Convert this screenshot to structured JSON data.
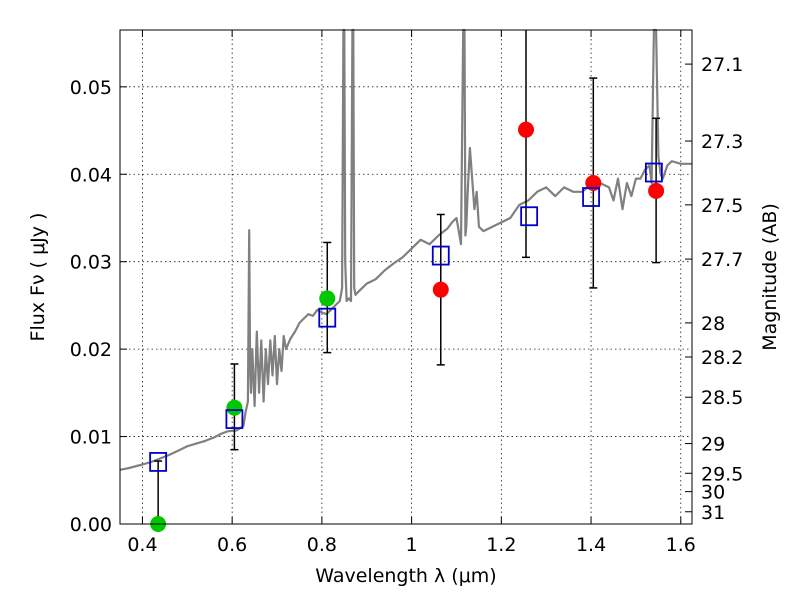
{
  "chart_data": {
    "type": "scatter",
    "title": "",
    "xlabel": "Wavelength  λ (μm)",
    "ylabel": "Flux  Fν  ( μJy )",
    "ylabel_right": "Magnitude (AB)",
    "xlim": [
      0.35,
      1.625
    ],
    "ylim": [
      0,
      0.0565
    ],
    "grid": true,
    "x_ticks": [
      0.4,
      0.6,
      0.8,
      1.0,
      1.2,
      1.4,
      1.6
    ],
    "x_tick_labels": [
      "0.4",
      "0.6",
      "0.8",
      "1",
      "1.2",
      "1.4",
      "1.6"
    ],
    "y_ticks": [
      0,
      0.01,
      0.02,
      0.03,
      0.04,
      0.05
    ],
    "y_tick_labels": [
      "0.00",
      "0.01",
      "0.02",
      "0.03",
      "0.04",
      "0.05"
    ],
    "right_ticks": [
      {
        "flux": 0.0526,
        "label": "27.1"
      },
      {
        "flux": 0.0438,
        "label": "27.3"
      },
      {
        "flux": 0.0365,
        "label": "27.5"
      },
      {
        "flux": 0.0303,
        "label": "27.7"
      },
      {
        "flux": 0.023,
        "label": "28"
      },
      {
        "flux": 0.0191,
        "label": "28.2"
      },
      {
        "flux": 0.0145,
        "label": "28.5"
      },
      {
        "flux": 0.0092,
        "label": "29"
      },
      {
        "flux": 0.0058,
        "label": "29.5"
      },
      {
        "flux": 0.0037,
        "label": "30"
      },
      {
        "flux": 0.0014,
        "label": "31"
      }
    ],
    "model_spectrum": {
      "color": "#808080",
      "x": [
        0.35,
        0.37,
        0.4,
        0.42,
        0.44,
        0.46,
        0.48,
        0.5,
        0.52,
        0.54,
        0.56,
        0.575,
        0.59,
        0.61,
        0.625,
        0.63,
        0.635,
        0.638,
        0.64,
        0.642,
        0.645,
        0.65,
        0.655,
        0.66,
        0.665,
        0.67,
        0.675,
        0.68,
        0.685,
        0.69,
        0.695,
        0.7,
        0.705,
        0.71,
        0.715,
        0.72,
        0.73,
        0.74,
        0.75,
        0.76,
        0.77,
        0.78,
        0.79,
        0.8,
        0.81,
        0.82,
        0.83,
        0.84,
        0.845,
        0.848,
        0.85,
        0.852,
        0.855,
        0.86,
        0.865,
        0.868,
        0.87,
        0.872,
        0.875,
        0.88,
        0.9,
        0.92,
        0.94,
        0.96,
        0.98,
        1.0,
        1.02,
        1.04,
        1.06,
        1.08,
        1.09,
        1.1,
        1.11,
        1.115,
        1.118,
        1.12,
        1.122,
        1.125,
        1.13,
        1.14,
        1.145,
        1.15,
        1.16,
        1.18,
        1.2,
        1.22,
        1.24,
        1.26,
        1.28,
        1.3,
        1.32,
        1.34,
        1.36,
        1.38,
        1.4,
        1.42,
        1.44,
        1.45,
        1.46,
        1.47,
        1.48,
        1.49,
        1.5,
        1.51,
        1.52,
        1.53,
        1.535,
        1.54,
        1.545,
        1.55,
        1.555,
        1.56,
        1.57,
        1.58,
        1.6,
        1.625
      ],
      "y": [
        0.0062,
        0.0064,
        0.0068,
        0.0071,
        0.0075,
        0.0079,
        0.0084,
        0.0089,
        0.0092,
        0.0095,
        0.0099,
        0.0103,
        0.0106,
        0.0107,
        0.0112,
        0.0128,
        0.014,
        0.0336,
        0.018,
        0.015,
        0.02,
        0.0135,
        0.022,
        0.015,
        0.021,
        0.014,
        0.02,
        0.016,
        0.021,
        0.017,
        0.0215,
        0.016,
        0.02,
        0.0175,
        0.0215,
        0.02,
        0.0212,
        0.022,
        0.023,
        0.0235,
        0.024,
        0.0238,
        0.0245,
        0.0242,
        0.024,
        0.0245,
        0.025,
        0.0255,
        0.027,
        0.0566,
        0.0566,
        0.03,
        0.0255,
        0.0258,
        0.0255,
        0.0566,
        0.0566,
        0.027,
        0.0262,
        0.0265,
        0.0275,
        0.028,
        0.029,
        0.0298,
        0.0305,
        0.0315,
        0.0325,
        0.032,
        0.033,
        0.0338,
        0.0345,
        0.035,
        0.032,
        0.0566,
        0.0566,
        0.033,
        0.034,
        0.038,
        0.043,
        0.036,
        0.038,
        0.034,
        0.0335,
        0.034,
        0.0345,
        0.035,
        0.0365,
        0.037,
        0.038,
        0.0385,
        0.0375,
        0.0385,
        0.038,
        0.038,
        0.0388,
        0.039,
        0.0385,
        0.037,
        0.0395,
        0.036,
        0.039,
        0.0375,
        0.0395,
        0.0395,
        0.0405,
        0.041,
        0.039,
        0.0566,
        0.0566,
        0.042,
        0.04,
        0.0395,
        0.041,
        0.0415,
        0.0412,
        0.0412
      ]
    },
    "series": [
      {
        "marker": "circle",
        "color": "#00c800",
        "points": [
          {
            "x": 0.435,
            "y": 0.0,
            "yerr_low": 0.0,
            "yerr_high": 0.0072
          },
          {
            "x": 0.605,
            "y": 0.0133,
            "yerr_low": 0.0085,
            "yerr_high": 0.0183
          },
          {
            "x": 0.812,
            "y": 0.0258,
            "yerr_low": 0.0196,
            "yerr_high": 0.0322
          }
        ]
      },
      {
        "marker": "circle",
        "color": "#ff0000",
        "points": [
          {
            "x": 1.065,
            "y": 0.0268,
            "yerr_low": 0.0182,
            "yerr_high": 0.0354
          },
          {
            "x": 1.255,
            "y": 0.0451,
            "yerr_low": 0.0305,
            "yerr_high": 0.0566
          },
          {
            "x": 1.405,
            "y": 0.039,
            "yerr_low": 0.027,
            "yerr_high": 0.051
          },
          {
            "x": 1.545,
            "y": 0.0381,
            "yerr_low": 0.0299,
            "yerr_high": 0.0464
          }
        ]
      },
      {
        "marker": "open-square",
        "color": "#0000cc",
        "points": [
          {
            "x": 0.435,
            "y": 0.0071
          },
          {
            "x": 0.605,
            "y": 0.012
          },
          {
            "x": 0.812,
            "y": 0.0236
          },
          {
            "x": 1.065,
            "y": 0.0307
          },
          {
            "x": 1.262,
            "y": 0.0352
          },
          {
            "x": 1.4,
            "y": 0.0374
          },
          {
            "x": 1.54,
            "y": 0.0402
          }
        ]
      }
    ]
  }
}
